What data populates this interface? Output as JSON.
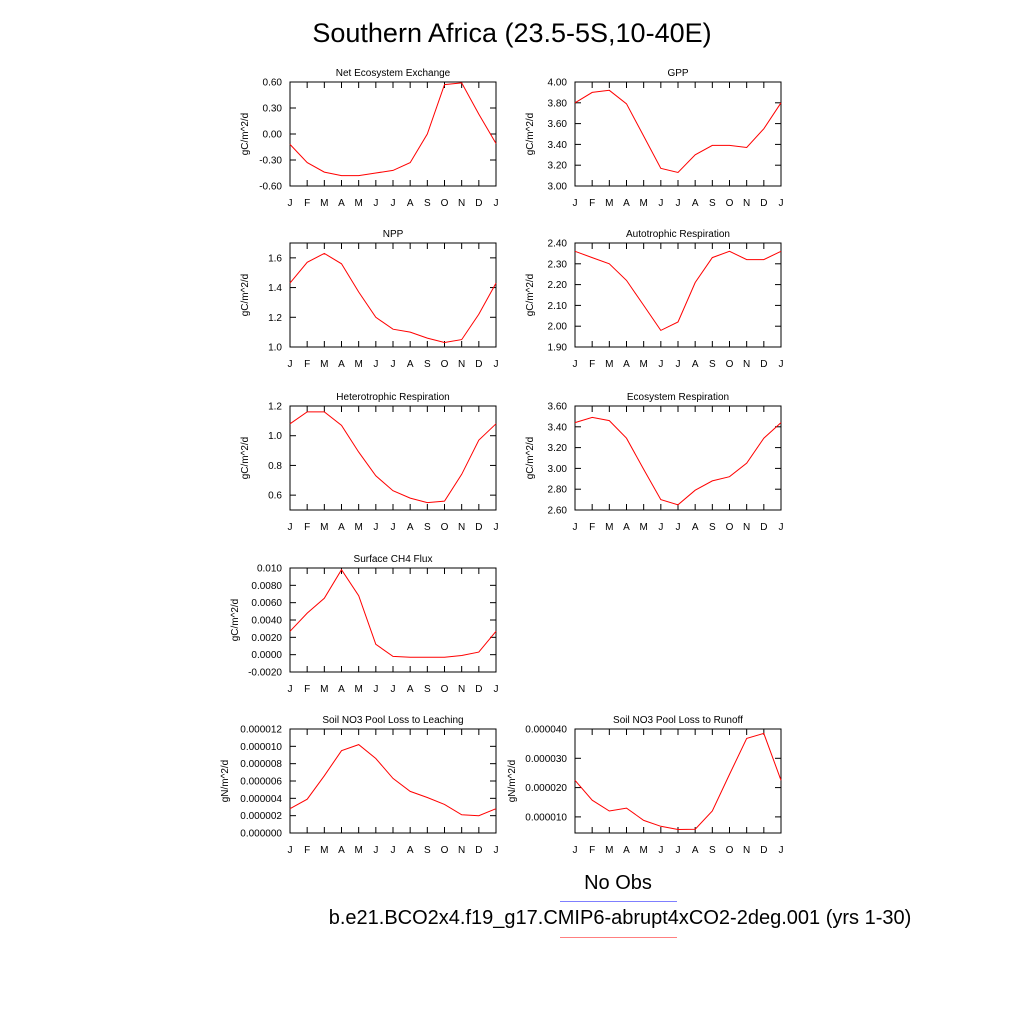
{
  "title": "Southern Africa (23.5-5S,10-40E)",
  "legend": {
    "obs_label": "No Obs",
    "obs_color": "#7f7fff",
    "model_label": "b.e21.BCO2x4.f19_g17.CMIP6-abrupt4xCO2-2deg.001 (yrs 1-30)",
    "model_color": "#ff7f7f"
  },
  "series_color": "#ff0000",
  "chart_data": [
    {
      "type": "line",
      "title": "Net Ecosystem Exchange",
      "ylabel": "gC/m^2/d",
      "categories": [
        "J",
        "F",
        "M",
        "A",
        "M",
        "J",
        "J",
        "A",
        "S",
        "O",
        "N",
        "D",
        "J"
      ],
      "values": [
        -0.12,
        -0.33,
        -0.44,
        -0.48,
        -0.48,
        -0.45,
        -0.42,
        -0.33,
        0.0,
        0.57,
        0.59,
        0.23,
        -0.11
      ],
      "ylim": [
        -0.6,
        0.6
      ],
      "yticks": [
        "-0.60",
        "-0.30",
        "0.00",
        "0.30",
        "0.60"
      ]
    },
    {
      "type": "line",
      "title": "GPP",
      "ylabel": "gC/m^2/d",
      "categories": [
        "J",
        "F",
        "M",
        "A",
        "M",
        "J",
        "J",
        "A",
        "S",
        "O",
        "N",
        "D",
        "J"
      ],
      "values": [
        3.8,
        3.9,
        3.92,
        3.79,
        3.48,
        3.17,
        3.13,
        3.3,
        3.39,
        3.39,
        3.37,
        3.55,
        3.8
      ],
      "ylim": [
        3.0,
        4.0
      ],
      "yticks": [
        "3.00",
        "3.20",
        "3.40",
        "3.60",
        "3.80",
        "4.00"
      ]
    },
    {
      "type": "line",
      "title": "NPP",
      "ylabel": "gC/m^2/d",
      "categories": [
        "J",
        "F",
        "M",
        "A",
        "M",
        "J",
        "J",
        "A",
        "S",
        "O",
        "N",
        "D",
        "J"
      ],
      "values": [
        1.43,
        1.57,
        1.63,
        1.56,
        1.37,
        1.2,
        1.12,
        1.1,
        1.06,
        1.03,
        1.05,
        1.22,
        1.43
      ],
      "ylim": [
        1.0,
        1.7
      ],
      "yticks": [
        "1.0",
        "1.2",
        "1.4",
        "1.6"
      ]
    },
    {
      "type": "line",
      "title": "Autotrophic Respiration",
      "ylabel": "gC/m^2/d",
      "categories": [
        "J",
        "F",
        "M",
        "A",
        "M",
        "J",
        "J",
        "A",
        "S",
        "O",
        "N",
        "D",
        "J"
      ],
      "values": [
        2.36,
        2.33,
        2.3,
        2.22,
        2.1,
        1.98,
        2.02,
        2.21,
        2.33,
        2.36,
        2.32,
        2.32,
        2.36
      ],
      "ylim": [
        1.9,
        2.4
      ],
      "yticks": [
        "1.90",
        "2.00",
        "2.10",
        "2.20",
        "2.30",
        "2.40"
      ]
    },
    {
      "type": "line",
      "title": "Heterotrophic Respiration",
      "ylabel": "gC/m^2/d",
      "categories": [
        "J",
        "F",
        "M",
        "A",
        "M",
        "J",
        "J",
        "A",
        "S",
        "O",
        "N",
        "D",
        "J"
      ],
      "values": [
        1.08,
        1.16,
        1.16,
        1.07,
        0.89,
        0.73,
        0.63,
        0.58,
        0.55,
        0.56,
        0.74,
        0.97,
        1.08
      ],
      "ylim": [
        0.5,
        1.2
      ],
      "yticks": [
        "0.6",
        "0.8",
        "1.0",
        "1.2"
      ]
    },
    {
      "type": "line",
      "title": "Ecosystem Respiration",
      "ylabel": "gC/m^2/d",
      "categories": [
        "J",
        "F",
        "M",
        "A",
        "M",
        "J",
        "J",
        "A",
        "S",
        "O",
        "N",
        "D",
        "J"
      ],
      "values": [
        3.44,
        3.49,
        3.46,
        3.29,
        2.99,
        2.7,
        2.65,
        2.79,
        2.88,
        2.92,
        3.05,
        3.29,
        3.44
      ],
      "ylim": [
        2.6,
        3.6
      ],
      "yticks": [
        "2.60",
        "2.80",
        "3.00",
        "3.20",
        "3.40",
        "3.60"
      ]
    },
    {
      "type": "line",
      "title": "Surface CH4 Flux",
      "ylabel": "gC/m^2/d",
      "categories": [
        "J",
        "F",
        "M",
        "A",
        "M",
        "J",
        "J",
        "A",
        "S",
        "O",
        "N",
        "D",
        "J"
      ],
      "values": [
        0.0027,
        0.0048,
        0.0065,
        0.0098,
        0.0068,
        0.0012,
        -0.0002,
        -0.0003,
        -0.0003,
        -0.0003,
        -0.0001,
        0.0003,
        0.0027
      ],
      "ylim": [
        -0.002,
        0.01
      ],
      "yticks": [
        "-0.0020",
        "0.0000",
        "0.0020",
        "0.0040",
        "0.0060",
        "0.0080",
        "0.010"
      ]
    },
    {
      "type": "line",
      "title": "Soil NO3 Pool Loss to Leaching",
      "ylabel": "gN/m^2/d",
      "categories": [
        "J",
        "F",
        "M",
        "A",
        "M",
        "J",
        "J",
        "A",
        "S",
        "O",
        "N",
        "D",
        "J"
      ],
      "values": [
        2.8e-06,
        3.9e-06,
        6.6e-06,
        9.5e-06,
        1.02e-05,
        8.6e-06,
        6.3e-06,
        4.8e-06,
        4.1e-06,
        3.3e-06,
        2.1e-06,
        2e-06,
        2.8e-06
      ],
      "ylim": [
        0.0,
        1.2e-05
      ],
      "yticks": [
        "0.000000",
        "0.000002",
        "0.000004",
        "0.000006",
        "0.000008",
        "0.000010",
        "0.000012"
      ]
    },
    {
      "type": "line",
      "title": "Soil NO3 Pool Loss to Runoff",
      "ylabel": "gN/m^2/d",
      "categories": [
        "J",
        "F",
        "M",
        "A",
        "M",
        "J",
        "J",
        "A",
        "S",
        "O",
        "N",
        "D",
        "J"
      ],
      "values": [
        2.25e-05,
        1.57e-05,
        1.2e-05,
        1.3e-05,
        8.8e-06,
        6.8e-06,
        5.7e-06,
        5.8e-06,
        1.2e-05,
        2.45e-05,
        3.68e-05,
        3.85e-05,
        2.25e-05
      ],
      "ylim": [
        4.5e-06,
        4e-05
      ],
      "yticks": [
        "0.000010",
        "0.000020",
        "0.000030",
        "0.000040"
      ]
    }
  ]
}
